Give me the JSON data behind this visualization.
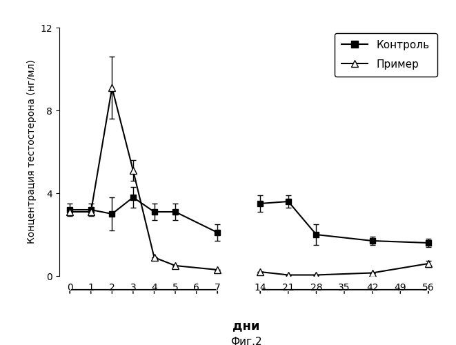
{
  "ylabel": "Концентрация тестостерона (нг/мл)",
  "xlabel": "дни",
  "fig_label": "Фиг.2",
  "ylim": [
    0,
    12
  ],
  "yticks": [
    0,
    4,
    8,
    12
  ],
  "x_ticks_labels_left": [
    0,
    1,
    2,
    3,
    4,
    5,
    6,
    7
  ],
  "x_ticks_labels_right": [
    14,
    21,
    28,
    35,
    42,
    49,
    56
  ],
  "control_x": [
    0,
    1,
    2,
    3,
    4,
    5,
    7,
    14,
    21,
    28,
    42,
    56
  ],
  "control_y": [
    3.2,
    3.2,
    3.0,
    3.8,
    3.1,
    3.1,
    2.1,
    3.5,
    3.6,
    2.0,
    1.7,
    1.6
  ],
  "control_yerr": [
    0.3,
    0.3,
    0.8,
    0.5,
    0.4,
    0.4,
    0.4,
    0.4,
    0.3,
    0.5,
    0.2,
    0.2
  ],
  "primer_x": [
    0,
    1,
    2,
    3,
    4,
    5,
    7,
    14,
    21,
    28,
    42,
    56
  ],
  "primer_y": [
    3.1,
    3.1,
    9.1,
    5.1,
    0.9,
    0.5,
    0.3,
    0.2,
    0.05,
    0.05,
    0.15,
    0.6
  ],
  "primer_yerr": [
    0.0,
    0.0,
    1.5,
    0.5,
    0.0,
    0.0,
    0.0,
    0.0,
    0.0,
    0.0,
    0.0,
    0.15
  ],
  "line_color": "#000000",
  "background_color": "#ffffff",
  "legend_kontrol": "Контроль",
  "legend_primer": "Пример"
}
